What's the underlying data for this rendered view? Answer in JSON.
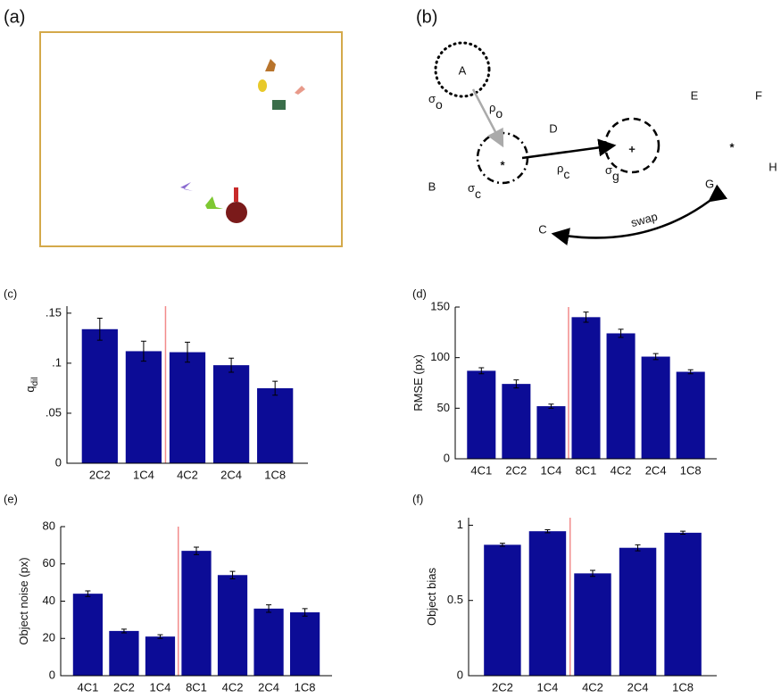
{
  "panel_a": {
    "label": "(a)"
  },
  "panel_b": {
    "label": "(b)",
    "labels": {
      "A": "A",
      "B": "B",
      "C": "C",
      "D": "D",
      "E": "E",
      "F": "F",
      "G": "G",
      "H": "H",
      "swap": "swap",
      "star1": "*",
      "star2": "*",
      "plus": "+"
    },
    "symbols": [
      {
        "text": "σ",
        "sub": "o"
      },
      {
        "text": "ρ",
        "sub": "o"
      },
      {
        "text": "σ",
        "sub": "c"
      },
      {
        "text": "ρ",
        "sub": "c"
      },
      {
        "text": "σ",
        "sub": "g"
      }
    ]
  },
  "chart_data": [
    {
      "type": "bar",
      "label": "(c)",
      "ylabel": "q",
      "ylabel_sub": "dil",
      "categories": [
        "2C2",
        "1C4",
        "4C2",
        "2C4",
        "1C8"
      ],
      "values": [
        0.134,
        0.112,
        0.111,
        0.098,
        0.075
      ],
      "errors": [
        0.011,
        0.01,
        0.01,
        0.007,
        0.007
      ],
      "color": "#0c0c96",
      "divider_after": 1,
      "divider_color": "#f28b8b",
      "ylim": [
        0,
        0.157
      ],
      "yticks": [
        {
          "value": 0,
          "label": "0"
        },
        {
          "value": 0.05,
          "label": ".05"
        },
        {
          "value": 0.1,
          "label": ".1"
        },
        {
          "value": 0.15,
          "label": ".15"
        }
      ]
    },
    {
      "type": "bar",
      "label": "(d)",
      "ylabel": "RMSE (px)",
      "categories": [
        "4C1",
        "2C2",
        "1C4",
        "8C1",
        "4C2",
        "2C4",
        "1C8"
      ],
      "values": [
        87,
        74,
        52,
        140,
        124,
        101,
        86
      ],
      "errors": [
        3,
        4,
        2,
        5,
        4,
        3,
        2
      ],
      "color": "#0c0c96",
      "divider_after": 2,
      "divider_color": "#f28b8b",
      "ylim": [
        0,
        150
      ],
      "yticks": [
        0,
        50,
        100,
        150
      ]
    },
    {
      "type": "bar",
      "label": "(e)",
      "ylabel": "Object noise (px)",
      "categories": [
        "4C1",
        "2C2",
        "1C4",
        "8C1",
        "4C2",
        "2C4",
        "1C8"
      ],
      "values": [
        44,
        24,
        21,
        67,
        54,
        36,
        34
      ],
      "errors": [
        1.5,
        1,
        1,
        2,
        2,
        2,
        2
      ],
      "color": "#0c0c96",
      "divider_after": 2,
      "divider_color": "#f28b8b",
      "ylim": [
        0,
        80
      ],
      "yticks": [
        0,
        20,
        40,
        60,
        80
      ]
    },
    {
      "type": "bar",
      "label": "(f)",
      "ylabel": "Object bias",
      "categories": [
        "2C2",
        "1C4",
        "4C2",
        "2C4",
        "1C8"
      ],
      "values": [
        0.87,
        0.96,
        0.68,
        0.85,
        0.95
      ],
      "errors": [
        0.01,
        0.01,
        0.02,
        0.02,
        0.01
      ],
      "color": "#0c0c96",
      "divider_after": 1,
      "divider_color": "#f28b8b",
      "ylim": [
        0,
        1.05
      ],
      "yticks": [
        0,
        0.5,
        1
      ]
    }
  ]
}
